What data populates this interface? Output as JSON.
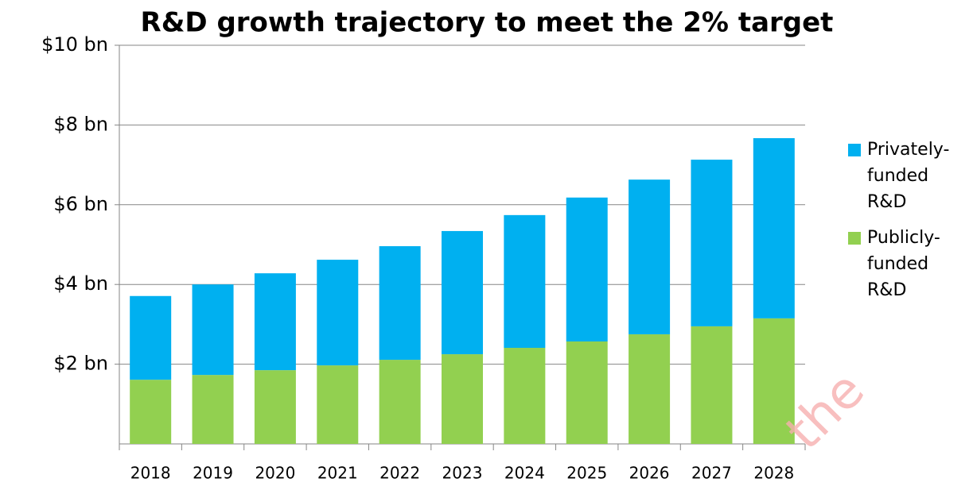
{
  "chart_data": {
    "type": "stacked_bar",
    "title": "R&D growth trajectory to meet the 2% target",
    "categories": [
      "2018",
      "2019",
      "2020",
      "2021",
      "2022",
      "2023",
      "2024",
      "2025",
      "2026",
      "2027",
      "2028"
    ],
    "series": [
      {
        "name": "Publicly-funded R&D",
        "color": "#92d050",
        "values": [
          1.61,
          1.73,
          1.85,
          1.97,
          2.11,
          2.25,
          2.41,
          2.57,
          2.75,
          2.95,
          3.15
        ]
      },
      {
        "name": "Privately-funded R&D",
        "color": "#00b0f0",
        "values": [
          2.1,
          2.27,
          2.43,
          2.65,
          2.85,
          3.09,
          3.33,
          3.61,
          3.88,
          4.18,
          4.52
        ]
      }
    ],
    "ylim": [
      0,
      10
    ],
    "yticks": [
      {
        "value": 2,
        "label": "$2 bn"
      },
      {
        "value": 4,
        "label": "$4 bn"
      },
      {
        "value": 6,
        "label": "$6 bn"
      },
      {
        "value": 8,
        "label": "$8 bn"
      },
      {
        "value": 10,
        "label": "$10 bn"
      }
    ],
    "grid": true,
    "legend": "right",
    "watermark": "the"
  }
}
